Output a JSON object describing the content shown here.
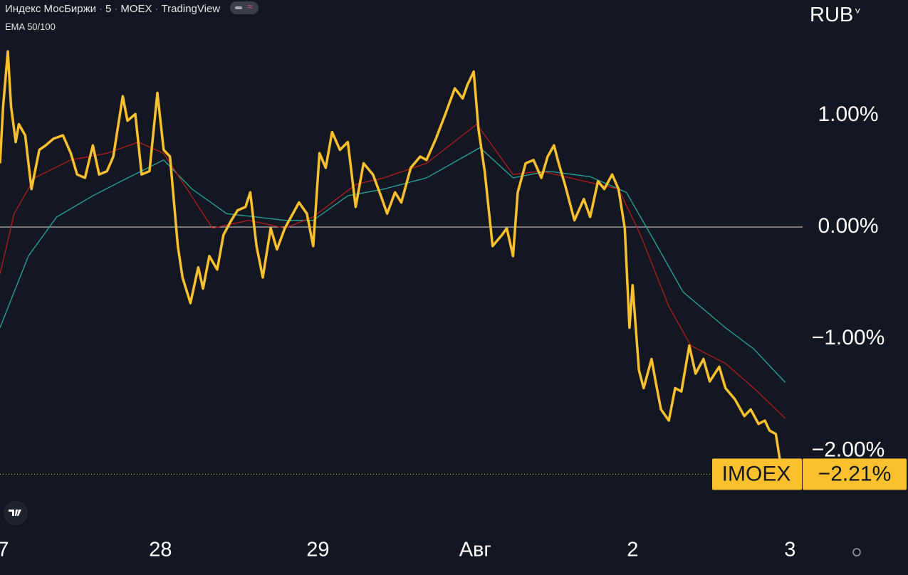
{
  "chart_data": {
    "type": "line",
    "header": [
      "Индекс МосБиржи",
      "5",
      "MOEX",
      "TradingView"
    ],
    "indicator": "EMA 50/100",
    "currency": "RUB",
    "baseline": 0,
    "xlim": [
      -0.02,
      5.08
    ],
    "ylim": [
      -2.71,
      2.03
    ],
    "xticks": [
      {
        "value": 0,
        "label": "7"
      },
      {
        "value": 1,
        "label": "28"
      },
      {
        "value": 2,
        "label": "29"
      },
      {
        "value": 3,
        "label": "Авг"
      },
      {
        "value": 4,
        "label": "2"
      },
      {
        "value": 5,
        "label": "3"
      }
    ],
    "yticks": [
      {
        "value": -2,
        "label": "−2.00%"
      },
      {
        "value": -1,
        "label": "−1.00%"
      },
      {
        "value": 0,
        "label": "0.00%"
      },
      {
        "value": 1,
        "label": "1.00%"
      }
    ],
    "series": [
      {
        "name": "IMOEX",
        "color": "#fbc02d",
        "last_value_label": "−2.21%",
        "x": [
          -0.02,
          0.0,
          0.03,
          0.05,
          0.08,
          0.1,
          0.14,
          0.18,
          0.23,
          0.27,
          0.32,
          0.38,
          0.43,
          0.47,
          0.52,
          0.57,
          0.61,
          0.66,
          0.7,
          0.76,
          0.79,
          0.84,
          0.88,
          0.93,
          0.98,
          1.02,
          1.06,
          1.11,
          1.14,
          1.19,
          1.24,
          1.27,
          1.31,
          1.36,
          1.4,
          1.45,
          1.49,
          1.54,
          1.57,
          1.61,
          1.65,
          1.7,
          1.74,
          1.79,
          1.88,
          1.93,
          1.97,
          2.01,
          2.05,
          2.09,
          2.14,
          2.19,
          2.24,
          2.29,
          2.35,
          2.4,
          2.44,
          2.49,
          2.53,
          2.59,
          2.65,
          2.69,
          2.75,
          2.81,
          2.87,
          2.92,
          2.95,
          2.99,
          3.02,
          3.06,
          3.11,
          3.17,
          3.2,
          3.24,
          3.27,
          3.32,
          3.37,
          3.42,
          3.46,
          3.5,
          3.53,
          3.57,
          3.63,
          3.69,
          3.73,
          3.78,
          3.82,
          3.87,
          3.91,
          3.95,
          3.98,
          4.0,
          4.04,
          4.07,
          4.12,
          4.15,
          4.18,
          4.23,
          4.27,
          4.31,
          4.36,
          4.4,
          4.45,
          4.49,
          4.55,
          4.59,
          4.65,
          4.71,
          4.75,
          4.8,
          4.84,
          4.87,
          4.91,
          4.95
        ],
        "values": [
          0.57,
          1.08,
          1.57,
          1.08,
          0.76,
          0.92,
          0.82,
          0.34,
          0.69,
          0.73,
          0.79,
          0.82,
          0.66,
          0.47,
          0.44,
          0.73,
          0.47,
          0.5,
          0.63,
          1.17,
          0.95,
          1.01,
          0.47,
          0.5,
          1.2,
          0.69,
          0.63,
          -0.17,
          -0.45,
          -0.68,
          -0.36,
          -0.55,
          -0.26,
          -0.38,
          -0.07,
          0.06,
          0.15,
          0.18,
          0.31,
          -0.17,
          -0.45,
          -0.01,
          -0.2,
          -0.01,
          0.22,
          0.12,
          -0.17,
          0.66,
          0.53,
          0.85,
          0.69,
          0.76,
          0.18,
          0.57,
          0.47,
          0.28,
          0.12,
          0.31,
          0.22,
          0.53,
          0.63,
          0.6,
          0.79,
          1.01,
          1.24,
          1.15,
          1.27,
          1.39,
          0.88,
          0.5,
          -0.17,
          -0.07,
          -0.01,
          -0.26,
          0.31,
          0.57,
          0.6,
          0.44,
          0.63,
          0.73,
          0.57,
          0.38,
          0.06,
          0.25,
          0.09,
          0.41,
          0.34,
          0.47,
          0.34,
          -0.01,
          -0.9,
          -0.52,
          -1.28,
          -1.44,
          -1.18,
          -1.41,
          -1.63,
          -1.73,
          -1.44,
          -1.47,
          -1.06,
          -1.31,
          -1.18,
          -1.38,
          -1.25,
          -1.44,
          -1.54,
          -1.69,
          -1.63,
          -1.76,
          -1.73,
          -1.82,
          -1.85,
          -2.21
        ]
      },
      {
        "color": "#b71c1c",
        "x": [
          -0.02,
          0.07,
          0.2,
          0.43,
          0.66,
          0.86,
          1.02,
          1.15,
          1.33,
          1.56,
          1.79,
          1.97,
          2.24,
          2.42,
          2.69,
          3.01,
          3.24,
          3.42,
          3.69,
          3.91,
          4.05,
          4.23,
          4.37,
          4.59,
          4.77,
          4.97
        ],
        "values": [
          -0.42,
          0.12,
          0.44,
          0.6,
          0.66,
          0.76,
          0.66,
          0.38,
          -0.01,
          0.06,
          -0.01,
          0.09,
          0.38,
          0.44,
          0.57,
          0.92,
          0.47,
          0.5,
          0.41,
          0.34,
          -0.07,
          -0.71,
          -1.06,
          -1.22,
          -1.44,
          -1.71
        ]
      },
      {
        "color": "#26a69a",
        "x": [
          -0.02,
          0.16,
          0.34,
          0.57,
          0.75,
          1.02,
          1.2,
          1.42,
          1.79,
          1.97,
          2.19,
          2.42,
          2.69,
          3.03,
          3.24,
          3.46,
          3.73,
          3.96,
          4.14,
          4.32,
          4.59,
          4.77,
          4.97
        ],
        "values": [
          -0.9,
          -0.26,
          0.09,
          0.28,
          0.41,
          0.6,
          0.34,
          0.12,
          0.06,
          0.06,
          0.28,
          0.34,
          0.44,
          0.71,
          0.44,
          0.5,
          0.45,
          0.31,
          -0.13,
          -0.58,
          -0.9,
          -1.09,
          -1.39
        ]
      }
    ]
  }
}
